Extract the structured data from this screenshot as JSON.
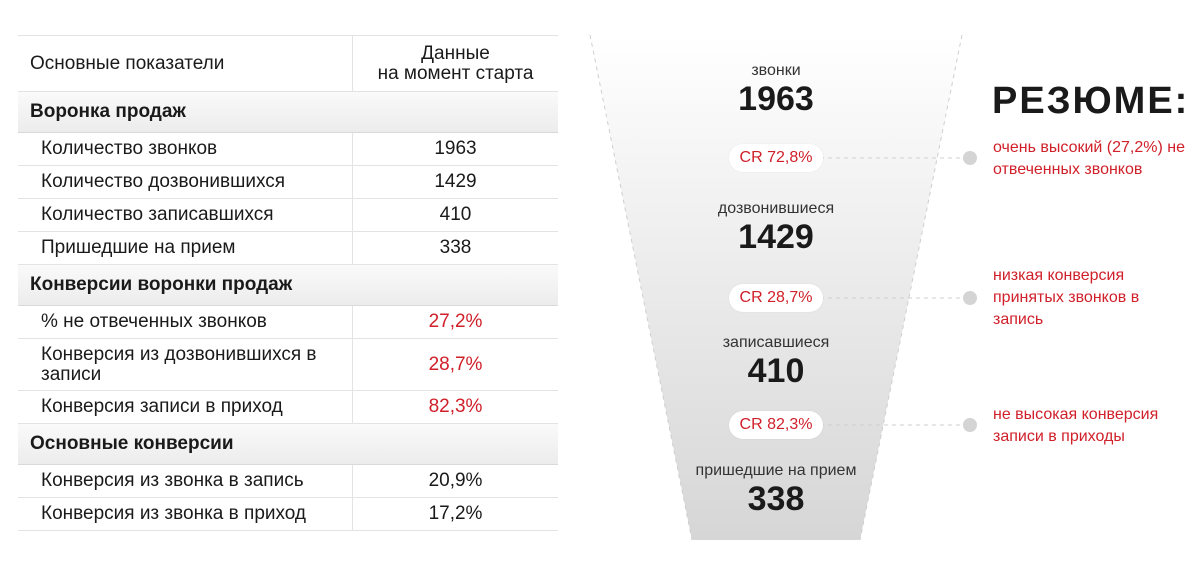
{
  "table": {
    "header": {
      "col1": "Основные показатели",
      "col2_line1": "Данные",
      "col2_line2": "на момент старта"
    },
    "sections": [
      {
        "title": "Воронка продаж",
        "rows": [
          {
            "label": "Количество звонков",
            "value": "1963"
          },
          {
            "label": "Количество дозвонившихся",
            "value": "1429"
          },
          {
            "label": "Количество записавшихся",
            "value": "410"
          },
          {
            "label": "Пришедшие на прием",
            "value": "338"
          }
        ]
      },
      {
        "title": "Конверсии воронки продаж",
        "rows": [
          {
            "label": "% не отвеченных звонков",
            "value": "27,2%"
          },
          {
            "label": "Конверсия из дозвонившихся в записи",
            "value": "28,7%"
          },
          {
            "label": "Конверсия записи в приход",
            "value": "82,3%"
          }
        ]
      },
      {
        "title": "Основные конверсии",
        "rows": [
          {
            "label": "Конверсия из звонка в запись",
            "value": "20,9%"
          },
          {
            "label": "Конверсия из звонка в приход",
            "value": "17,2%"
          }
        ]
      }
    ]
  },
  "funnel": {
    "stages": [
      {
        "label": "звонки",
        "value": "1963"
      },
      {
        "label": "дозвонившиеся",
        "value": "1429"
      },
      {
        "label": "записавшиеся",
        "value": "410"
      },
      {
        "label": "пришедшие на прием",
        "value": "338"
      }
    ],
    "conversions": [
      "CR 72,8%",
      "CR 28,7%",
      "CR 82,3%"
    ]
  },
  "summary": {
    "title": "РЕЗЮМЕ:",
    "notes": [
      "очень высокий (27,2%) не отвеченных звонков",
      "низкая конверсия принятых звонков в запись",
      "не высокая конверсия записи в приходы"
    ]
  },
  "colors": {
    "accent_red": "#d0202a",
    "section_bg": "#ececec",
    "funnel_gray": "#d9d9d9"
  }
}
